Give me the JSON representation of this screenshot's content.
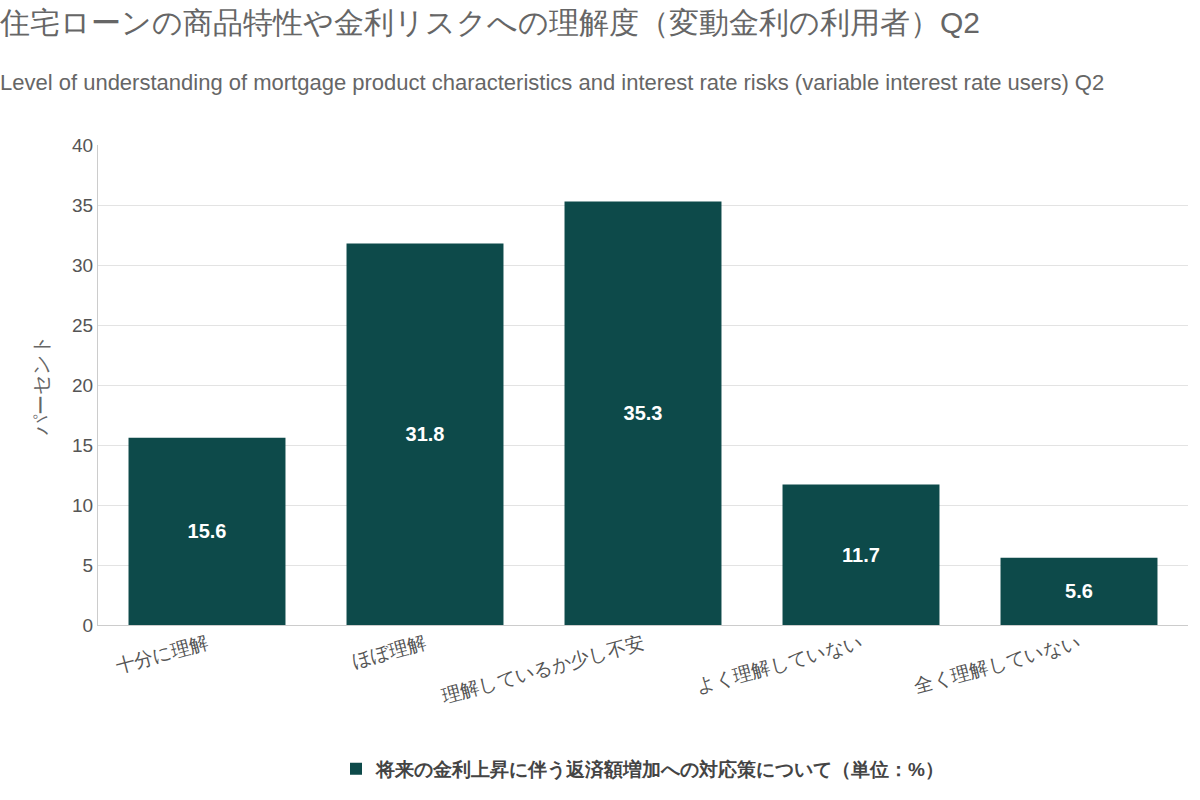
{
  "chart_data": {
    "type": "bar",
    "title": "住宅ローンの商品特性や金利リスクへの理解度（変動金利の利用者）Q2",
    "subtitle": "Level of understanding of mortgage product characteristics and interest rate risks (variable interest rate users) Q2",
    "y_label": "パーセント",
    "categories": [
      "十分に理解",
      "ほぼ理解",
      "理解しているか少し不安",
      "よく理解していない",
      "全く理解していない"
    ],
    "series": [
      {
        "name": "将来の金利上昇に伴う返済額増加への対応策について（単位：%）",
        "color": "#0d4a4a",
        "values": [
          15.6,
          31.8,
          35.3,
          11.7,
          5.6
        ]
      }
    ],
    "ylim": [
      0,
      40
    ],
    "yticks": [
      0,
      5,
      10,
      15,
      20,
      25,
      30,
      35,
      40
    ],
    "grid": true,
    "legend": "bottom",
    "data_labels": true
  }
}
